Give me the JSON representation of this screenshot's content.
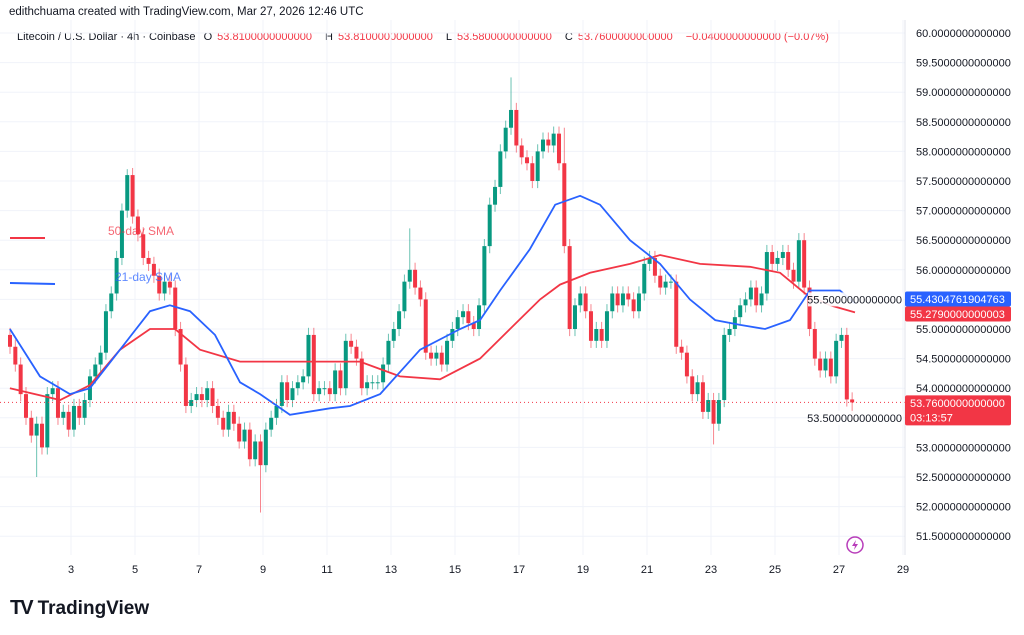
{
  "header": {
    "credit": "edithchuama created with TradingView.com, Mar 27, 2026 12:46 UTC",
    "symbol": "Litecoin / U.S. Dollar · 4h · Coinbase",
    "open_label": "O",
    "open": "53.8100000000000",
    "high_label": "H",
    "high": "53.8100000000000",
    "low_label": "L",
    "low": "53.5800000000000",
    "close_label": "C",
    "close": "53.7600000000000",
    "change": "−0.0400000000000 (−0.07%)"
  },
  "footer": {
    "brand": "TradingView",
    "logo": "TV"
  },
  "colors": {
    "up": "#089981",
    "down": "#f23645",
    "sma21": "#2962ff",
    "sma50": "#f23645",
    "grid": "#f0f3fa"
  },
  "chart_data": {
    "type": "candlestick",
    "interval": "4h",
    "x_ticks": [
      "3",
      "5",
      "7",
      "9",
      "11",
      "13",
      "15",
      "17",
      "19",
      "21",
      "23",
      "25",
      "27",
      "29"
    ],
    "y_ticks": [
      "60.0000000000000",
      "59.5000000000000",
      "59.0000000000000",
      "58.5000000000000",
      "58.0000000000000",
      "57.5000000000000",
      "57.0000000000000",
      "56.5000000000000",
      "56.0000000000000",
      "55.5000000000000",
      "55.0000000000000",
      "54.5000000000000",
      "54.0000000000000",
      "53.5000000000000",
      "53.0000000000000",
      "52.5000000000000",
      "52.0000000000000",
      "51.5000000000000"
    ],
    "ylim": [
      51.3,
      60.2
    ],
    "grid": true,
    "close": [
      54.7,
      54.4,
      53.9,
      53.5,
      53.2,
      53.4,
      53.0,
      53.9,
      54.0,
      53.5,
      53.6,
      53.3,
      53.7,
      53.5,
      53.8,
      54.2,
      54.4,
      54.6,
      55.3,
      55.6,
      56.2,
      57.0,
      57.6,
      56.9,
      56.6,
      56.2,
      56.1,
      55.9,
      55.6,
      55.8,
      55.7,
      55.0,
      54.4,
      53.7,
      53.8,
      53.9,
      53.8,
      54.0,
      53.7,
      53.5,
      53.3,
      53.6,
      53.4,
      53.1,
      53.3,
      52.8,
      53.1,
      52.7,
      53.3,
      53.5,
      53.7,
      54.1,
      53.8,
      54.0,
      54.1,
      54.2,
      54.9,
      53.9,
      54.0,
      54.0,
      53.9,
      54.3,
      54.0,
      54.8,
      54.7,
      54.5,
      54.0,
      54.1,
      54.1,
      54.1,
      54.4,
      54.8,
      55.0,
      55.3,
      55.8,
      56.0,
      55.7,
      55.5,
      54.6,
      54.5,
      54.6,
      54.4,
      54.8,
      55.0,
      55.2,
      55.3,
      55.1,
      55.0,
      55.4,
      56.4,
      57.1,
      57.4,
      58.0,
      58.4,
      58.7,
      58.1,
      57.9,
      57.8,
      57.5,
      58.0,
      58.2,
      58.1,
      58.3,
      57.8,
      56.4,
      55.0,
      55.4,
      55.6,
      55.3,
      54.8,
      55.0,
      54.8,
      55.3,
      55.6,
      55.4,
      55.6,
      55.5,
      55.3,
      55.6,
      56.1,
      56.2,
      55.9,
      55.7,
      55.8,
      55.8,
      54.7,
      54.6,
      54.2,
      53.9,
      54.1,
      53.6,
      53.8,
      53.4,
      53.8,
      54.9,
      55.0,
      55.2,
      55.4,
      55.5,
      55.7,
      55.4,
      55.6,
      56.3,
      56.1,
      56.2,
      56.3,
      56.0,
      55.8,
      56.5,
      55.7,
      55.0,
      54.5,
      54.3,
      54.5,
      54.2,
      54.8,
      54.9,
      53.81,
      53.76
    ],
    "first_open": 54.9,
    "notable_highs": {
      "22": 57.7,
      "94": 59.25,
      "75": 56.7,
      "104": 58.4
    },
    "notable_lows": {
      "5": 52.5,
      "47": 51.9,
      "132": 53.05,
      "158": 53.45
    },
    "sma21": {
      "label": "21-day SMA",
      "value": "55.4304761904763",
      "points": [
        [
          1.09,
          55.0
        ],
        [
          2.03,
          54.2
        ],
        [
          2.97,
          53.9
        ],
        [
          3.59,
          54.0
        ],
        [
          4.53,
          54.65
        ],
        [
          5.47,
          55.3
        ],
        [
          6.09,
          55.4
        ],
        [
          6.72,
          55.3
        ],
        [
          7.5,
          54.9
        ],
        [
          8.28,
          54.1
        ],
        [
          8.91,
          53.9
        ],
        [
          9.84,
          53.55
        ],
        [
          11.09,
          53.66
        ],
        [
          11.72,
          53.7
        ],
        [
          12.66,
          53.9
        ],
        [
          13.91,
          54.65
        ],
        [
          15.16,
          55.0
        ],
        [
          15.78,
          55.15
        ],
        [
          16.41,
          55.65
        ],
        [
          17.34,
          56.35
        ],
        [
          18.13,
          57.1
        ],
        [
          18.91,
          57.25
        ],
        [
          19.53,
          57.1
        ],
        [
          20.47,
          56.5
        ],
        [
          21.41,
          56.1
        ],
        [
          22.34,
          55.5
        ],
        [
          23.13,
          55.15
        ],
        [
          23.91,
          55.07
        ],
        [
          24.69,
          55.0
        ],
        [
          25.47,
          55.15
        ],
        [
          26.09,
          55.65
        ],
        [
          27.03,
          55.65
        ],
        [
          27.5,
          55.43
        ]
      ]
    },
    "sma50": {
      "label": "50-day SMA",
      "value": "55.2790000000003",
      "points": [
        [
          1.09,
          54.0
        ],
        [
          2.66,
          53.8
        ],
        [
          3.59,
          54.05
        ],
        [
          4.53,
          54.65
        ],
        [
          5.47,
          55.0
        ],
        [
          6.25,
          55.0
        ],
        [
          7.03,
          54.65
        ],
        [
          8.28,
          54.45
        ],
        [
          10.16,
          54.45
        ],
        [
          12.03,
          54.45
        ],
        [
          13.28,
          54.2
        ],
        [
          14.53,
          54.15
        ],
        [
          15.78,
          54.5
        ],
        [
          16.72,
          55.0
        ],
        [
          17.66,
          55.5
        ],
        [
          18.28,
          55.75
        ],
        [
          19.22,
          55.95
        ],
        [
          20.47,
          56.1
        ],
        [
          21.41,
          56.25
        ],
        [
          22.66,
          56.1
        ],
        [
          24.22,
          56.05
        ],
        [
          25.16,
          55.95
        ],
        [
          25.94,
          55.6
        ],
        [
          26.72,
          55.4
        ],
        [
          27.5,
          55.28
        ]
      ]
    },
    "last_price": "53.7600000000000",
    "countdown": "03:13:57"
  }
}
